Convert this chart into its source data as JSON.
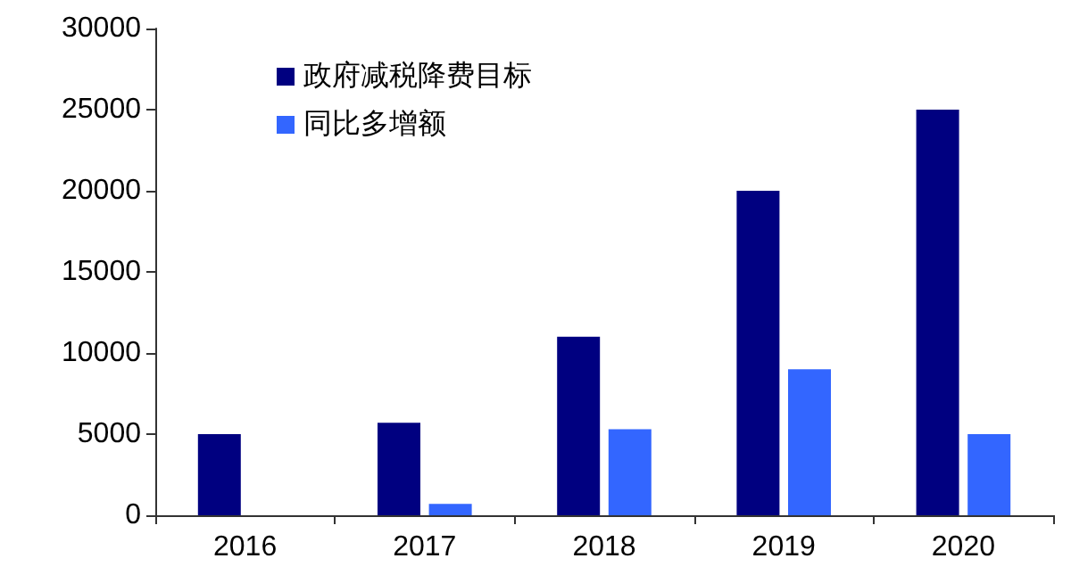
{
  "chart_data": {
    "type": "bar",
    "categories": [
      "2016",
      "2017",
      "2018",
      "2019",
      "2020"
    ],
    "series": [
      {
        "name": "政府减税降费目标",
        "color": "#000080",
        "values": [
          5000,
          5700,
          11000,
          20000,
          25000
        ]
      },
      {
        "name": "同比多增额",
        "color": "#3366ff",
        "values": [
          null,
          700,
          5300,
          9000,
          5000
        ]
      }
    ],
    "ylim": [
      0,
      30000
    ],
    "yticks": [
      0,
      5000,
      10000,
      15000,
      20000,
      25000,
      30000
    ],
    "grid": false,
    "legend": "top left"
  }
}
